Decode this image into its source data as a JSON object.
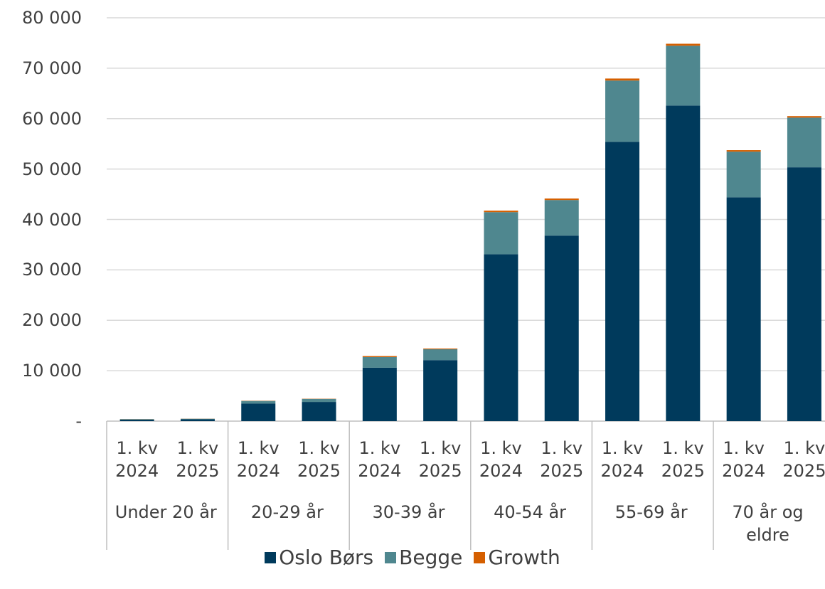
{
  "chart_data": {
    "type": "stacked-bar",
    "categories": [
      "1. kv 2024",
      "1. kv 2025",
      "1. kv 2024",
      "1. kv 2025",
      "1. kv 2024",
      "1. kv 2025",
      "1. kv 2024",
      "1. kv 2025",
      "1. kv 2024",
      "1. kv 2025",
      "1. kv 2024",
      "1. kv 2025"
    ],
    "groups": [
      "Under 20 år",
      "20-29 år",
      "30-39 år",
      "40-54 år",
      "55-69 år",
      "70 år og eldre"
    ],
    "series": [
      {
        "name": "Oslo Børs",
        "color": "#003a5c",
        "values": [
          300,
          350,
          3500,
          3800,
          10600,
          12100,
          33100,
          36800,
          55400,
          62600,
          44400,
          50350
        ]
      },
      {
        "name": "Begge",
        "color": "#4f878f",
        "values": [
          100,
          120,
          500,
          600,
          2100,
          2150,
          8350,
          7050,
          12150,
          11850,
          9050,
          9850
        ]
      },
      {
        "name": "Growth",
        "color": "#d55f00",
        "values": [
          20,
          20,
          50,
          50,
          200,
          150,
          300,
          300,
          400,
          400,
          300,
          300
        ]
      }
    ],
    "ylim": [
      0,
      80000
    ],
    "yticks": [
      {
        "value": 0,
        "label": "-"
      },
      {
        "value": 10000,
        "label": "10 000"
      },
      {
        "value": 20000,
        "label": "20 000"
      },
      {
        "value": 30000,
        "label": "30 000"
      },
      {
        "value": 40000,
        "label": "40 000"
      },
      {
        "value": 50000,
        "label": "50 000"
      },
      {
        "value": 60000,
        "label": "60 000"
      },
      {
        "value": 70000,
        "label": "70 000"
      },
      {
        "value": 80000,
        "label": "80 000"
      }
    ],
    "grid": true,
    "legend": "bottom"
  }
}
